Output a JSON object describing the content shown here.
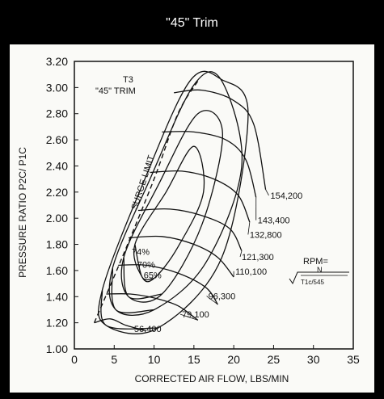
{
  "page_title": "\"45\" Trim",
  "chart_data": {
    "type": "line",
    "xlabel": "CORRECTED AIR FLOW, LBS/MIN",
    "ylabel": "PRESSURE RATIO P2C/ P1C",
    "xlim": [
      0,
      35
    ],
    "ylim": [
      1.0,
      3.2
    ],
    "x_ticks": [
      "0",
      "5",
      "10",
      "15",
      "20",
      "25",
      "30",
      "35"
    ],
    "y_ticks": [
      "1.00",
      "1.20",
      "1.40",
      "1.60",
      "1.80",
      "2.00",
      "2.20",
      "2.40",
      "2.60",
      "2.80",
      "3.00",
      "3.20"
    ],
    "grid": false,
    "inset_label": {
      "line1": "T3",
      "line2": "\"45\" TRIM"
    },
    "surge_label": "SURGE LIMIT",
    "rpm_formula": {
      "lhs": "RPM=",
      "numerator": "N",
      "denominator": "T1c/545"
    },
    "surge_line": {
      "x": [
        2.5,
        6,
        10,
        13,
        15.5
      ],
      "y": [
        1.2,
        1.7,
        2.3,
        2.8,
        3.05
      ]
    },
    "speed_lines": [
      {
        "name": "56,400",
        "x": [
          2.5,
          4.5,
          6.5,
          9.0
        ],
        "y": [
          1.2,
          1.23,
          1.18,
          1.14
        ],
        "label_at": [
          7.5,
          1.13
        ]
      },
      {
        "name": "79,100",
        "x": [
          4.0,
          7.0,
          10.0,
          13.0,
          15.5
        ],
        "y": [
          1.42,
          1.42,
          1.39,
          1.33,
          1.22
        ],
        "label_at": [
          13.5,
          1.24
        ]
      },
      {
        "name": "96,300",
        "x": [
          5.5,
          9.0,
          13.0,
          16.5,
          18.0
        ],
        "y": [
          1.64,
          1.64,
          1.58,
          1.47,
          1.34
        ],
        "label_at": [
          16.8,
          1.38
        ]
      },
      {
        "name": "110,100",
        "x": [
          6.8,
          11.0,
          15.0,
          18.0,
          20.0
        ],
        "y": [
          1.85,
          1.86,
          1.8,
          1.7,
          1.55
        ],
        "label_at": [
          20.2,
          1.57
        ]
      },
      {
        "name": "121,300",
        "x": [
          8.0,
          12.0,
          16.0,
          19.5,
          21.0
        ],
        "y": [
          2.06,
          2.07,
          2.02,
          1.92,
          1.75
        ],
        "label_at": [
          21.0,
          1.68
        ]
      },
      {
        "name": "132,800",
        "x": [
          9.5,
          13.5,
          17.5,
          20.5,
          22.0
        ],
        "y": [
          2.35,
          2.36,
          2.3,
          2.18,
          1.97
        ],
        "label_at": [
          22.0,
          1.85
        ]
      },
      {
        "name": "143,400",
        "x": [
          11.0,
          15.0,
          19.0,
          21.5,
          22.8
        ],
        "y": [
          2.66,
          2.66,
          2.6,
          2.45,
          2.16
        ],
        "label_at": [
          23.0,
          1.96
        ]
      },
      {
        "name": "154,200",
        "x": [
          12.5,
          16.0,
          20.0,
          22.5,
          24.0
        ],
        "y": [
          2.96,
          2.98,
          2.9,
          2.72,
          2.22
        ],
        "label_at": [
          24.6,
          2.15
        ]
      }
    ],
    "efficiency_islands": [
      {
        "name": "74%",
        "label_at": [
          7.2,
          1.72
        ]
      },
      {
        "name": "70%",
        "label_at": [
          7.9,
          1.62
        ]
      },
      {
        "name": "65%",
        "label_at": [
          8.7,
          1.54
        ]
      }
    ]
  }
}
